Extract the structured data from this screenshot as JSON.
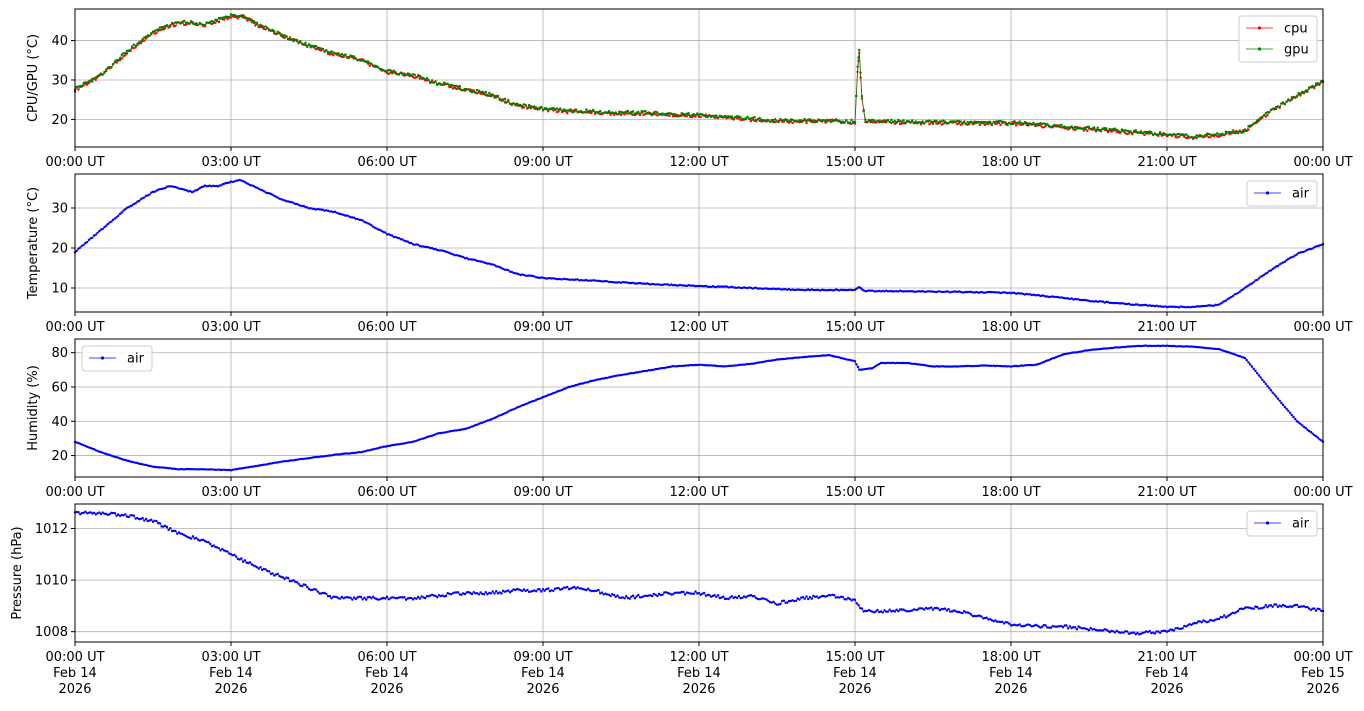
{
  "chart_data": [
    {
      "type": "line",
      "ylabel": "CPU/GPU (°C)",
      "xlim": [
        "2026-02-14T00:00Z",
        "2026-02-15T00:00Z"
      ],
      "ylim": [
        13,
        48
      ],
      "yticks": [
        20,
        30,
        40
      ],
      "xtick_labels": [
        "00:00 UT",
        "03:00 UT",
        "06:00 UT",
        "09:00 UT",
        "12:00 UT",
        "15:00 UT",
        "18:00 UT",
        "21:00 UT",
        "00:00 UT"
      ],
      "grid": true,
      "legend": "top-right",
      "series": [
        {
          "name": "cpu",
          "color": "#ff0000",
          "x": [
            "00:00",
            "00:30",
            "01:00",
            "01:30",
            "02:00",
            "02:30",
            "03:00",
            "03:15",
            "03:30",
            "04:00",
            "04:30",
            "05:00",
            "05:30",
            "06:00",
            "06:30",
            "07:00",
            "07:30",
            "08:00",
            "08:30",
            "09:00",
            "09:30",
            "10:00",
            "10:30",
            "11:00",
            "11:30",
            "12:00",
            "12:30",
            "13:00",
            "13:30",
            "14:00",
            "14:30",
            "15:00",
            "15:03",
            "15:05",
            "15:08",
            "15:12",
            "15:30",
            "16:00",
            "17:00",
            "18:00",
            "19:00",
            "20:00",
            "20:30",
            "21:00",
            "21:30",
            "22:00",
            "22:30",
            "23:00",
            "23:30",
            "24:00"
          ],
          "values": [
            27.5,
            31,
            37,
            42,
            44.5,
            44,
            46,
            46,
            44,
            41,
            38.5,
            36.5,
            35,
            32,
            31,
            29,
            27.5,
            26,
            23.5,
            22.5,
            22,
            21.8,
            21.5,
            21.5,
            21,
            21,
            20.5,
            20,
            19.5,
            19.5,
            19.5,
            19.3,
            32,
            37,
            25,
            19.5,
            19.3,
            19.2,
            19,
            19,
            18,
            17,
            16.5,
            16,
            15.5,
            16,
            17,
            22,
            26,
            29.5
          ]
        },
        {
          "name": "gpu",
          "color": "#008000",
          "x": [
            "00:00",
            "00:30",
            "01:00",
            "01:30",
            "02:00",
            "02:30",
            "03:00",
            "03:15",
            "03:30",
            "04:00",
            "04:30",
            "05:00",
            "05:30",
            "06:00",
            "06:30",
            "07:00",
            "07:30",
            "08:00",
            "08:30",
            "09:00",
            "09:30",
            "10:00",
            "10:30",
            "11:00",
            "11:30",
            "12:00",
            "12:30",
            "13:00",
            "13:30",
            "14:00",
            "14:30",
            "15:00",
            "15:03",
            "15:05",
            "15:08",
            "15:12",
            "15:30",
            "16:00",
            "17:00",
            "18:00",
            "19:00",
            "20:00",
            "20:30",
            "21:00",
            "21:30",
            "22:00",
            "22:30",
            "23:00",
            "23:30",
            "24:00"
          ],
          "values": [
            27.8,
            31.2,
            37.2,
            42.2,
            44.7,
            44.2,
            46.2,
            46.2,
            44.2,
            41.2,
            38.7,
            36.7,
            35.2,
            32.2,
            31.2,
            29.2,
            27.7,
            26.2,
            23.7,
            22.7,
            22.2,
            22,
            21.7,
            21.7,
            21.2,
            21.2,
            20.7,
            20.2,
            19.7,
            19.7,
            19.7,
            19.5,
            33,
            37.5,
            26,
            19.7,
            19.5,
            19.4,
            19.2,
            19.2,
            18.2,
            17.2,
            16.7,
            16.2,
            15.7,
            16.2,
            17.2,
            22.2,
            26.2,
            29.7
          ]
        }
      ]
    },
    {
      "type": "line",
      "ylabel": "Temperature (°C)",
      "xlim": [
        "2026-02-14T00:00Z",
        "2026-02-15T00:00Z"
      ],
      "ylim": [
        4,
        38.5
      ],
      "yticks": [
        10,
        20,
        30
      ],
      "xtick_labels": [
        "00:00 UT",
        "03:00 UT",
        "06:00 UT",
        "09:00 UT",
        "12:00 UT",
        "15:00 UT",
        "18:00 UT",
        "21:00 UT",
        "00:00 UT"
      ],
      "grid": true,
      "legend": "top-right",
      "series": [
        {
          "name": "air",
          "color": "#0000ff",
          "x": [
            "00:00",
            "00:30",
            "01:00",
            "01:30",
            "01:50",
            "02:15",
            "02:30",
            "02:45",
            "03:00",
            "03:10",
            "03:30",
            "04:00",
            "04:30",
            "05:00",
            "05:30",
            "06:00",
            "06:30",
            "07:00",
            "07:30",
            "08:00",
            "08:30",
            "09:00",
            "10:00",
            "11:00",
            "12:00",
            "13:00",
            "14:00",
            "15:00",
            "15:05",
            "15:10",
            "16:00",
            "17:00",
            "18:00",
            "19:00",
            "20:00",
            "21:00",
            "21:30",
            "22:00",
            "22:30",
            "23:00",
            "23:30",
            "24:00"
          ],
          "values": [
            19,
            24.5,
            30,
            34,
            35.5,
            34,
            35.5,
            35.5,
            36.5,
            37,
            35,
            32,
            30,
            29,
            27,
            23.5,
            21,
            19.5,
            17.5,
            16,
            13.5,
            12.5,
            11.8,
            11,
            10.5,
            10,
            9.5,
            9.5,
            10.2,
            9.3,
            9.2,
            9,
            8.8,
            7.5,
            6.2,
            5.3,
            5.2,
            5.8,
            10,
            14.5,
            18.5,
            21
          ]
        }
      ]
    },
    {
      "type": "line",
      "ylabel": "Humidity (%)",
      "xlim": [
        "2026-02-14T00:00Z",
        "2026-02-15T00:00Z"
      ],
      "ylim": [
        7.5,
        88
      ],
      "yticks": [
        20,
        40,
        60,
        80
      ],
      "xtick_labels": [
        "00:00 UT",
        "03:00 UT",
        "06:00 UT",
        "09:00 UT",
        "12:00 UT",
        "15:00 UT",
        "18:00 UT",
        "21:00 UT",
        "00:00 UT"
      ],
      "grid": true,
      "legend": "top-left",
      "series": [
        {
          "name": "air",
          "color": "#0000ff",
          "x": [
            "00:00",
            "00:30",
            "01:00",
            "01:30",
            "02:00",
            "02:30",
            "03:00",
            "03:30",
            "04:00",
            "04:30",
            "05:00",
            "05:30",
            "06:00",
            "06:30",
            "07:00",
            "07:30",
            "08:00",
            "08:30",
            "09:00",
            "09:30",
            "10:00",
            "10:30",
            "11:00",
            "11:30",
            "12:00",
            "12:30",
            "13:00",
            "13:30",
            "14:00",
            "14:30",
            "15:00",
            "15:05",
            "15:20",
            "15:30",
            "16:00",
            "16:30",
            "17:00",
            "17:30",
            "18:00",
            "18:30",
            "19:00",
            "19:30",
            "20:00",
            "20:30",
            "21:00",
            "21:30",
            "22:00",
            "22:30",
            "23:00",
            "23:30",
            "24:00"
          ],
          "values": [
            28,
            22,
            17,
            13.5,
            12,
            12,
            11.5,
            14,
            16.5,
            18.5,
            20.5,
            22,
            25.5,
            28,
            33,
            35.5,
            41,
            48,
            54,
            60,
            64,
            67,
            69.5,
            72,
            73,
            72,
            73.5,
            76,
            77.5,
            78.5,
            75,
            70,
            71,
            74,
            74,
            72,
            72,
            72.5,
            72,
            73,
            79,
            81.5,
            83,
            84,
            84,
            83.5,
            82,
            77,
            58,
            40,
            28
          ]
        }
      ]
    },
    {
      "type": "line",
      "ylabel": "Pressure (hPa)",
      "xlim": [
        "2026-02-14T00:00Z",
        "2026-02-15T00:00Z"
      ],
      "ylim": [
        1007.6,
        1012.95
      ],
      "yticks": [
        1008,
        1010,
        1012
      ],
      "xtick_labels": [
        "00:00 UT\nFeb 14\n2026",
        "03:00 UT\nFeb 14\n2026",
        "06:00 UT\nFeb 14\n2026",
        "09:00 UT\nFeb 14\n2026",
        "12:00 UT\nFeb 14\n2026",
        "15:00 UT\nFeb 14\n2026",
        "18:00 UT\nFeb 14\n2026",
        "21:00 UT\nFeb 14\n2026",
        "00:00 UT\nFeb 15\n2026"
      ],
      "grid": true,
      "legend": "top-right",
      "series": [
        {
          "name": "air",
          "color": "#0000ff",
          "x": [
            "00:00",
            "00:30",
            "01:00",
            "01:30",
            "02:00",
            "02:30",
            "03:00",
            "03:30",
            "04:00",
            "04:30",
            "05:00",
            "05:30",
            "06:00",
            "06:30",
            "07:00",
            "07:30",
            "08:00",
            "08:30",
            "09:00",
            "09:30",
            "10:00",
            "10:30",
            "11:00",
            "11:30",
            "12:00",
            "12:30",
            "13:00",
            "13:30",
            "14:00",
            "14:30",
            "15:00",
            "15:10",
            "15:30",
            "16:00",
            "16:30",
            "17:00",
            "17:30",
            "18:00",
            "18:30",
            "19:00",
            "19:30",
            "20:00",
            "20:30",
            "21:00",
            "21:30",
            "22:00",
            "22:30",
            "23:00",
            "23:30",
            "24:00"
          ],
          "values": [
            1012.6,
            1012.6,
            1012.5,
            1012.3,
            1011.8,
            1011.5,
            1011,
            1010.5,
            1010.1,
            1009.7,
            1009.3,
            1009.3,
            1009.3,
            1009.3,
            1009.4,
            1009.5,
            1009.5,
            1009.6,
            1009.6,
            1009.7,
            1009.6,
            1009.3,
            1009.4,
            1009.5,
            1009.5,
            1009.3,
            1009.4,
            1009.1,
            1009.3,
            1009.4,
            1009.2,
            1008.8,
            1008.8,
            1008.8,
            1008.9,
            1008.8,
            1008.5,
            1008.3,
            1008.2,
            1008.2,
            1008.1,
            1008.0,
            1007.95,
            1008.0,
            1008.3,
            1008.5,
            1008.9,
            1009.0,
            1009.0,
            1008.8
          ]
        }
      ]
    }
  ]
}
